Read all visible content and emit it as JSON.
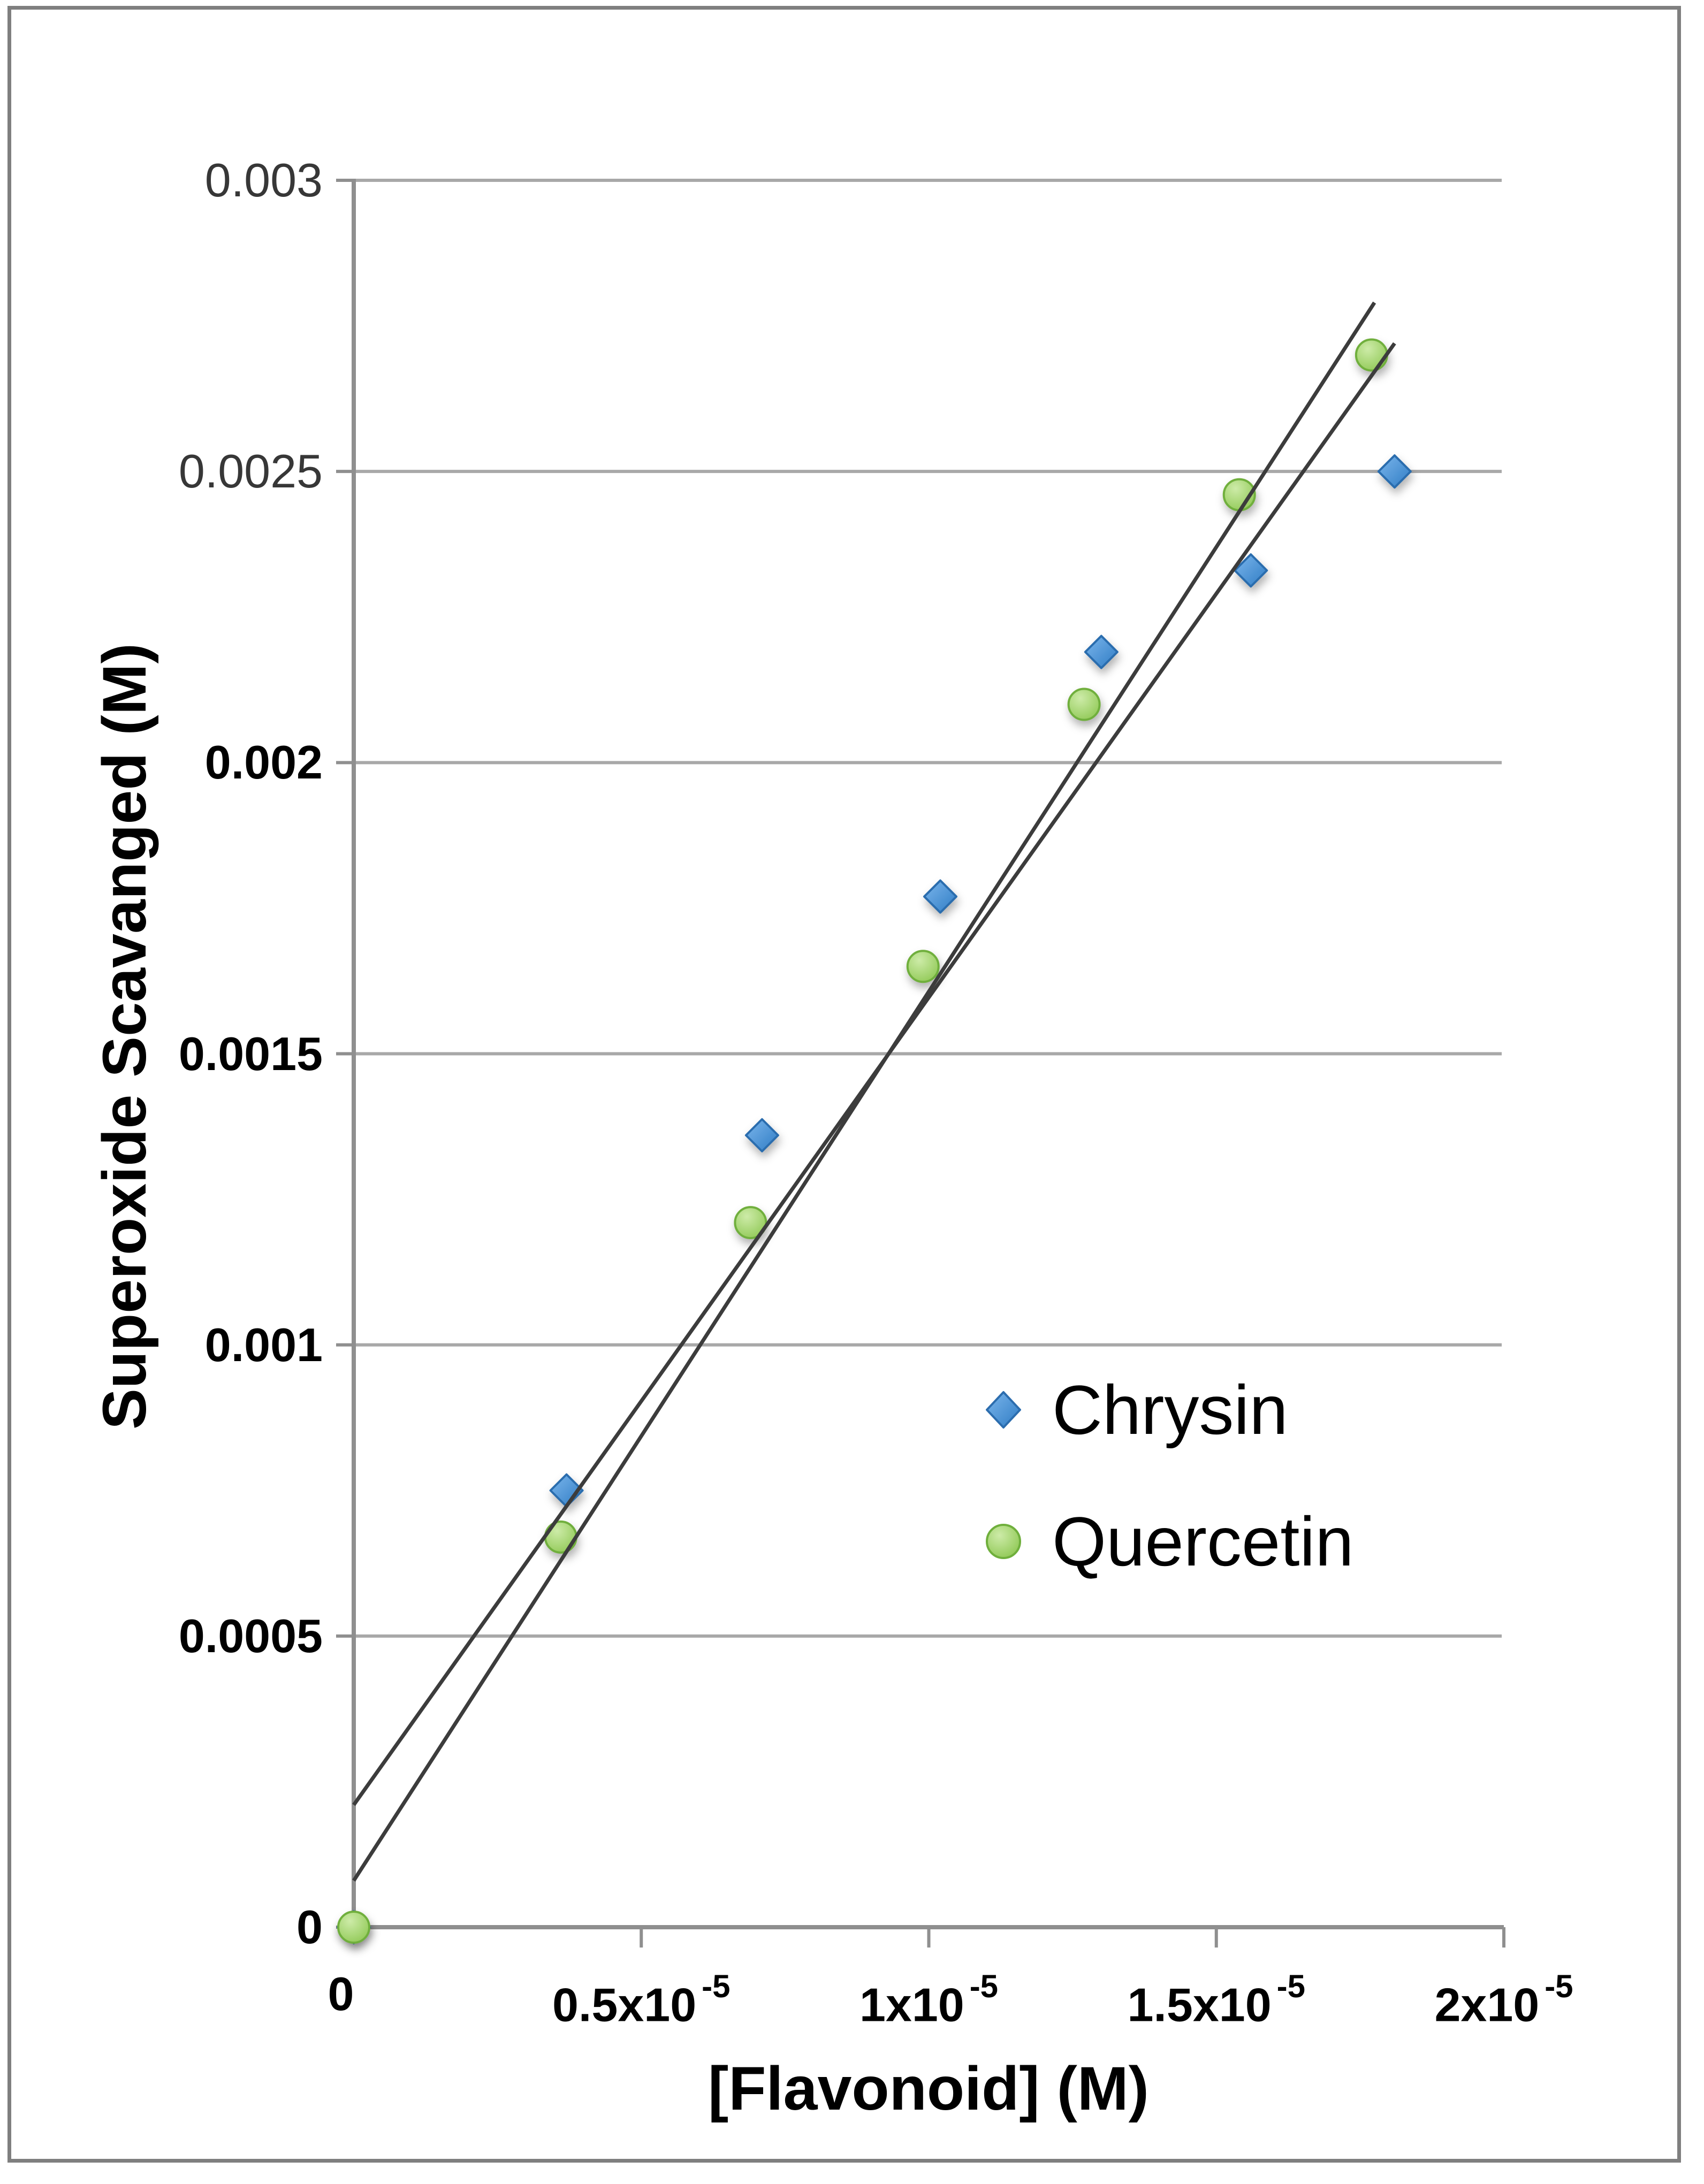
{
  "window": {
    "background": "#ffffff",
    "border_color": "#7f7f7f"
  },
  "chart_data": {
    "type": "scatter",
    "title": "",
    "xlabel": "[Flavonoid] (M)",
    "ylabel": "Superoxide Scavanged (M)",
    "xlim": [
      0,
      2.1e-05
    ],
    "ylim": [
      0,
      0.003
    ],
    "grid": "horizontal",
    "grid_color": "#a8a8a8",
    "axis_color": "#8f8f8f",
    "trendline_color": "#3c3c3c",
    "legend_position": "middle-right",
    "x_ticks": [
      {
        "label": "0",
        "sup": "",
        "value": 0
      },
      {
        "label": "0.5x10",
        "sup": "-5",
        "value": 5e-06
      },
      {
        "label": "1x10",
        "sup": "-5",
        "value": 1e-05
      },
      {
        "label": "1.5x10",
        "sup": "-5",
        "value": 1.5e-05
      },
      {
        "label": "2x10",
        "sup": "-5",
        "value": 2e-05
      }
    ],
    "y_ticks": [
      {
        "label": "0.003",
        "value": 0.003,
        "muted": true
      },
      {
        "label": "0.0025",
        "value": 0.0025,
        "muted": true
      },
      {
        "label": "0.002",
        "value": 0.002,
        "muted": false
      },
      {
        "label": "0.0015",
        "value": 0.0015,
        "muted": false
      },
      {
        "label": "0.001",
        "value": 0.001,
        "muted": false
      },
      {
        "label": "0.0005",
        "value": 0.0005,
        "muted": false
      },
      {
        "label": "0",
        "value": 0,
        "muted": false
      }
    ],
    "series": [
      {
        "name": "Chrysin",
        "marker": "diamond",
        "fill_light": "#7cb6ec",
        "fill_dark": "#2f7cc4",
        "stroke": "#2c6dae",
        "points": [
          [
            0,
            0
          ],
          [
            3.7e-06,
            0.00075
          ],
          [
            7.1e-06,
            0.00136
          ],
          [
            1.02e-05,
            0.00177
          ],
          [
            1.3e-05,
            0.00219
          ],
          [
            1.56e-05,
            0.00233
          ],
          [
            1.81e-05,
            0.0025
          ]
        ],
        "trendline": {
          "x1": 0,
          "y1": 0.00021,
          "x2": 1.81e-05,
          "y2": 0.00272
        }
      },
      {
        "name": "Quercetin",
        "marker": "circle",
        "fill_light": "#cdeba8",
        "fill_dark": "#8fc854",
        "stroke": "#6faf3c",
        "points": [
          [
            0,
            0
          ],
          [
            3.6e-06,
            0.00067
          ],
          [
            6.9e-06,
            0.00121
          ],
          [
            9.9e-06,
            0.00165
          ],
          [
            1.27e-05,
            0.0021
          ],
          [
            1.54e-05,
            0.00246
          ],
          [
            1.77e-05,
            0.0027
          ]
        ],
        "trendline": {
          "x1": 0,
          "y1": 8e-05,
          "x2": 1.775e-05,
          "y2": 0.00279
        }
      }
    ]
  }
}
